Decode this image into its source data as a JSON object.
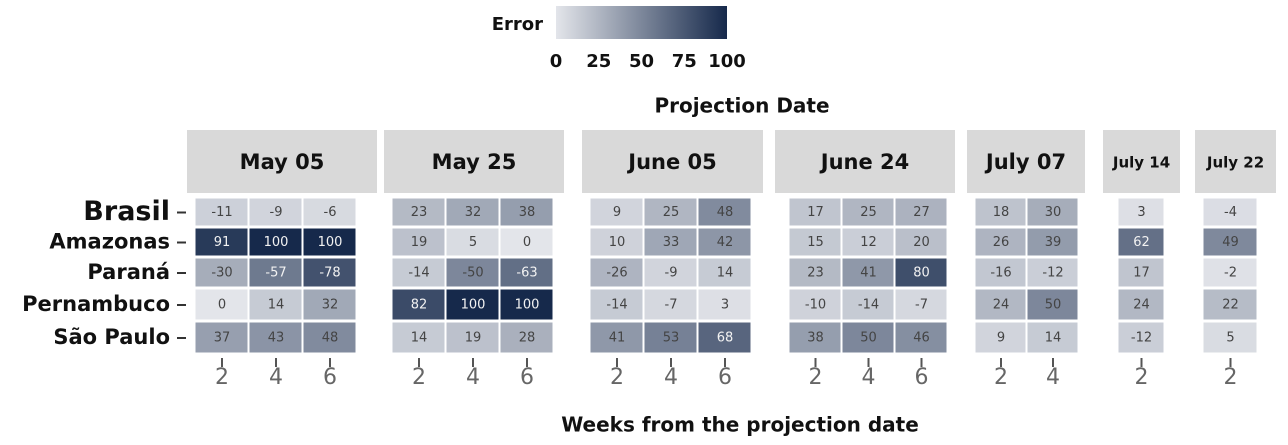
{
  "chart_data": {
    "type": "heatmap",
    "title": "Projection Date",
    "x_label": "Weeks from the projection date",
    "colorbar": {
      "title": "Error",
      "lim": [
        0,
        100
      ],
      "ticks": [
        0,
        25,
        50,
        75,
        100
      ],
      "low_color": "#e3e5ea",
      "high_color": "#16294b"
    },
    "rows": [
      "Brasil",
      "Amazonas",
      "Paraná",
      "Pernambuco",
      "São Paulo"
    ],
    "panels": [
      {
        "title": "May 05",
        "x": [
          2,
          4,
          6
        ],
        "values": [
          [
            -11,
            -9,
            -6
          ],
          [
            91,
            100,
            100
          ],
          [
            -30,
            -57,
            -78
          ],
          [
            0,
            14,
            32
          ],
          [
            37,
            43,
            48
          ]
        ]
      },
      {
        "title": "May 25",
        "x": [
          2,
          4,
          6
        ],
        "values": [
          [
            23,
            32,
            38
          ],
          [
            19,
            5,
            0
          ],
          [
            -14,
            -50,
            -63
          ],
          [
            82,
            100,
            100
          ],
          [
            14,
            19,
            28
          ]
        ]
      },
      {
        "title": "June 05",
        "x": [
          2,
          4,
          6
        ],
        "values": [
          [
            9,
            25,
            48
          ],
          [
            10,
            33,
            42
          ],
          [
            -26,
            -9,
            14
          ],
          [
            -14,
            -7,
            3
          ],
          [
            41,
            53,
            68
          ]
        ]
      },
      {
        "title": "June 24",
        "x": [
          2,
          4,
          6
        ],
        "values": [
          [
            17,
            25,
            27
          ],
          [
            15,
            12,
            20
          ],
          [
            23,
            41,
            80
          ],
          [
            -10,
            -14,
            -7
          ],
          [
            38,
            50,
            46
          ]
        ]
      },
      {
        "title": "July 07",
        "x": [
          2,
          4
        ],
        "values": [
          [
            18,
            30
          ],
          [
            26,
            39
          ],
          [
            -16,
            -12
          ],
          [
            24,
            50
          ],
          [
            9,
            14
          ]
        ]
      },
      {
        "title": "July 14",
        "x": [
          2
        ],
        "values": [
          [
            3
          ],
          [
            62
          ],
          [
            17
          ],
          [
            24
          ],
          [
            -12
          ]
        ]
      },
      {
        "title": "July 22",
        "x": [
          2
        ],
        "values": [
          [
            -4
          ],
          [
            49
          ],
          [
            -2
          ],
          [
            22
          ],
          [
            5
          ]
        ]
      }
    ]
  }
}
